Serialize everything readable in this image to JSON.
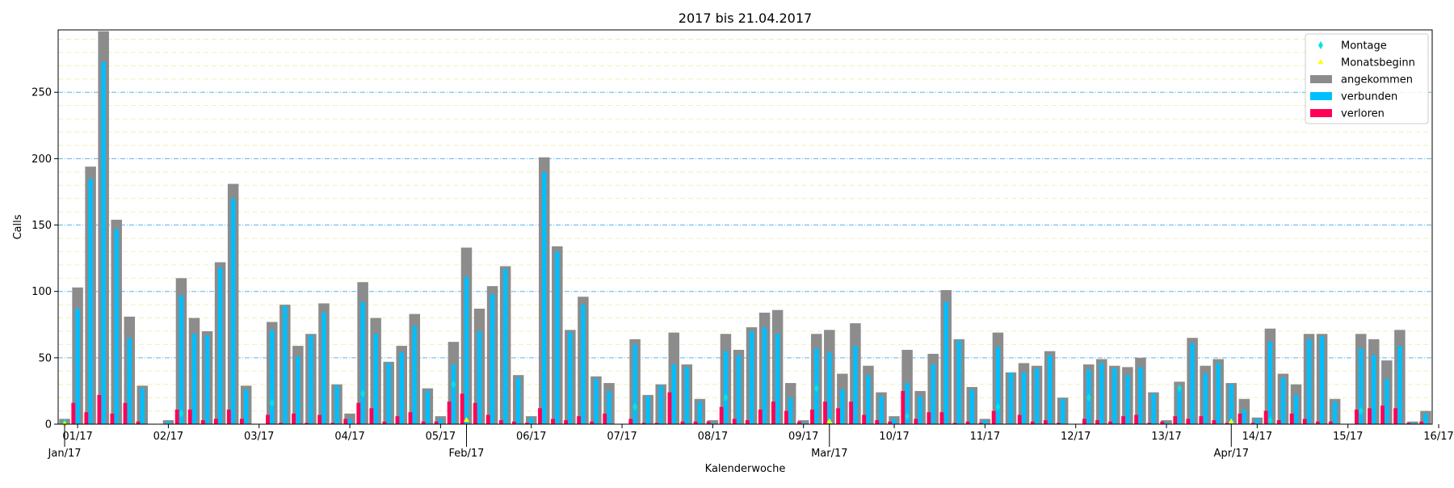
{
  "chart_data": {
    "type": "bar",
    "title": "2017 bis 21.04.2017",
    "xlabel": "Kalenderwoche",
    "ylabel": "Calls",
    "ylim": [
      0,
      297
    ],
    "xlim": [
      -0.5,
      105.5
    ],
    "grid": true,
    "legend_position": "top-right",
    "legend": [
      {
        "label": "Montage",
        "marker": "diamond",
        "color": "#00e5e5"
      },
      {
        "label": "Monatsbeginn",
        "marker": "triangle",
        "color": "#ffff00"
      },
      {
        "label": "angekommen",
        "marker": "patch",
        "color": "#8c8c8c"
      },
      {
        "label": "verbunden",
        "marker": "patch",
        "color": "#00bfff"
      },
      {
        "label": "verloren",
        "marker": "patch",
        "color": "#ff0055"
      }
    ],
    "y_ticks": [
      0,
      50,
      100,
      150,
      200,
      250
    ],
    "week_ticks": [
      {
        "x": 1,
        "label": "01/17"
      },
      {
        "x": 8,
        "label": "02/17"
      },
      {
        "x": 15,
        "label": "03/17"
      },
      {
        "x": 22,
        "label": "04/17"
      },
      {
        "x": 29,
        "label": "05/17"
      },
      {
        "x": 36,
        "label": "06/17"
      },
      {
        "x": 43,
        "label": "07/17"
      },
      {
        "x": 50,
        "label": "08/17"
      },
      {
        "x": 57,
        "label": "09/17"
      },
      {
        "x": 64,
        "label": "10/17"
      },
      {
        "x": 71,
        "label": "11/17"
      },
      {
        "x": 78,
        "label": "12/17"
      },
      {
        "x": 85,
        "label": "13/17"
      },
      {
        "x": 92,
        "label": "14/17"
      },
      {
        "x": 99,
        "label": "15/17"
      },
      {
        "x": 106,
        "label": "16/17"
      }
    ],
    "month_ticks": [
      {
        "x": 0,
        "label": "Jan/17"
      },
      {
        "x": 31,
        "label": "Feb/17"
      },
      {
        "x": 59,
        "label": "Mar/17"
      },
      {
        "x": 90,
        "label": "Apr/17"
      }
    ],
    "angekommen": [
      4,
      103,
      194,
      296,
      154,
      81,
      29,
      0,
      3,
      110,
      80,
      70,
      122,
      181,
      29,
      0,
      77,
      90,
      59,
      68,
      91,
      30,
      8,
      107,
      80,
      47,
      59,
      83,
      27,
      6,
      62,
      133,
      87,
      104,
      119,
      37,
      6,
      201,
      134,
      71,
      96,
      36,
      31,
      0,
      64,
      22,
      30,
      69,
      45,
      19,
      3,
      68,
      56,
      73,
      84,
      86,
      31,
      3,
      68,
      71,
      38,
      76,
      44,
      24,
      6,
      56,
      25,
      53,
      101,
      64,
      28,
      4,
      69,
      39,
      46,
      44,
      55,
      20,
      0,
      45,
      49,
      44,
      43,
      50,
      24,
      3,
      32,
      65,
      44,
      49,
      31,
      19,
      5,
      72,
      38,
      30,
      68,
      68,
      19,
      0,
      68,
      64,
      48,
      71,
      2,
      10
    ],
    "verbunden": [
      0,
      87,
      185,
      273,
      147,
      65,
      27,
      0,
      2,
      97,
      68,
      67,
      118,
      170,
      26,
      0,
      71,
      89,
      51,
      67,
      84,
      29,
      4,
      92,
      68,
      46,
      54,
      74,
      25,
      4,
      45,
      111,
      70,
      98,
      117,
      35,
      5,
      190,
      130,
      69,
      90,
      34,
      25,
      0,
      60,
      21,
      29,
      45,
      43,
      17,
      1,
      55,
      52,
      70,
      73,
      68,
      20,
      1,
      57,
      54,
      26,
      59,
      37,
      21,
      4,
      31,
      21,
      45,
      92,
      63,
      26,
      3,
      58,
      39,
      39,
      42,
      52,
      19,
      0,
      41,
      46,
      42,
      37,
      43,
      23,
      1,
      26,
      61,
      38,
      46,
      30,
      11,
      4,
      62,
      35,
      22,
      64,
      66,
      17,
      0,
      57,
      52,
      34,
      59,
      1,
      8
    ],
    "verloren": [
      0,
      16,
      9,
      22,
      8,
      16,
      2,
      0,
      0,
      11,
      11,
      3,
      4,
      11,
      4,
      0,
      7,
      1,
      8,
      1,
      7,
      1,
      4,
      16,
      12,
      2,
      6,
      9,
      2,
      2,
      17,
      23,
      16,
      7,
      3,
      2,
      1,
      12,
      4,
      3,
      6,
      2,
      8,
      0,
      4,
      1,
      1,
      24,
      2,
      2,
      2,
      13,
      4,
      3,
      11,
      17,
      10,
      2,
      11,
      17,
      12,
      17,
      7,
      3,
      2,
      25,
      4,
      9,
      9,
      1,
      2,
      1,
      10,
      0,
      7,
      2,
      3,
      1,
      0,
      4,
      3,
      2,
      6,
      7,
      1,
      2,
      6,
      4,
      6,
      3,
      1,
      8,
      1,
      10,
      3,
      8,
      4,
      2,
      2,
      0,
      11,
      12,
      14,
      12,
      1,
      2
    ],
    "montage": [
      1,
      null,
      null,
      null,
      null,
      null,
      null,
      null,
      null,
      8,
      null,
      null,
      null,
      null,
      null,
      null,
      16,
      null,
      null,
      null,
      null,
      null,
      null,
      23,
      null,
      null,
      null,
      null,
      null,
      null,
      30,
      null,
      null,
      null,
      null,
      null,
      null,
      null,
      null,
      null,
      null,
      null,
      null,
      null,
      13,
      null,
      null,
      null,
      null,
      null,
      null,
      20,
      null,
      null,
      null,
      null,
      null,
      null,
      27,
      null,
      null,
      null,
      null,
      null,
      null,
      6,
      null,
      null,
      null,
      null,
      null,
      null,
      13,
      null,
      null,
      null,
      null,
      null,
      null,
      20,
      null,
      null,
      null,
      null,
      null,
      null,
      27,
      null,
      null,
      null,
      null,
      null,
      null,
      3,
      null,
      null,
      null,
      null,
      null,
      null,
      10,
      null,
      null,
      null,
      null,
      null
    ],
    "monatsbeginn": [
      {
        "x": 0,
        "y": 0
      },
      {
        "x": 31,
        "y": 3
      },
      {
        "x": 59,
        "y": 2
      },
      {
        "x": 90,
        "y": 2
      }
    ]
  }
}
